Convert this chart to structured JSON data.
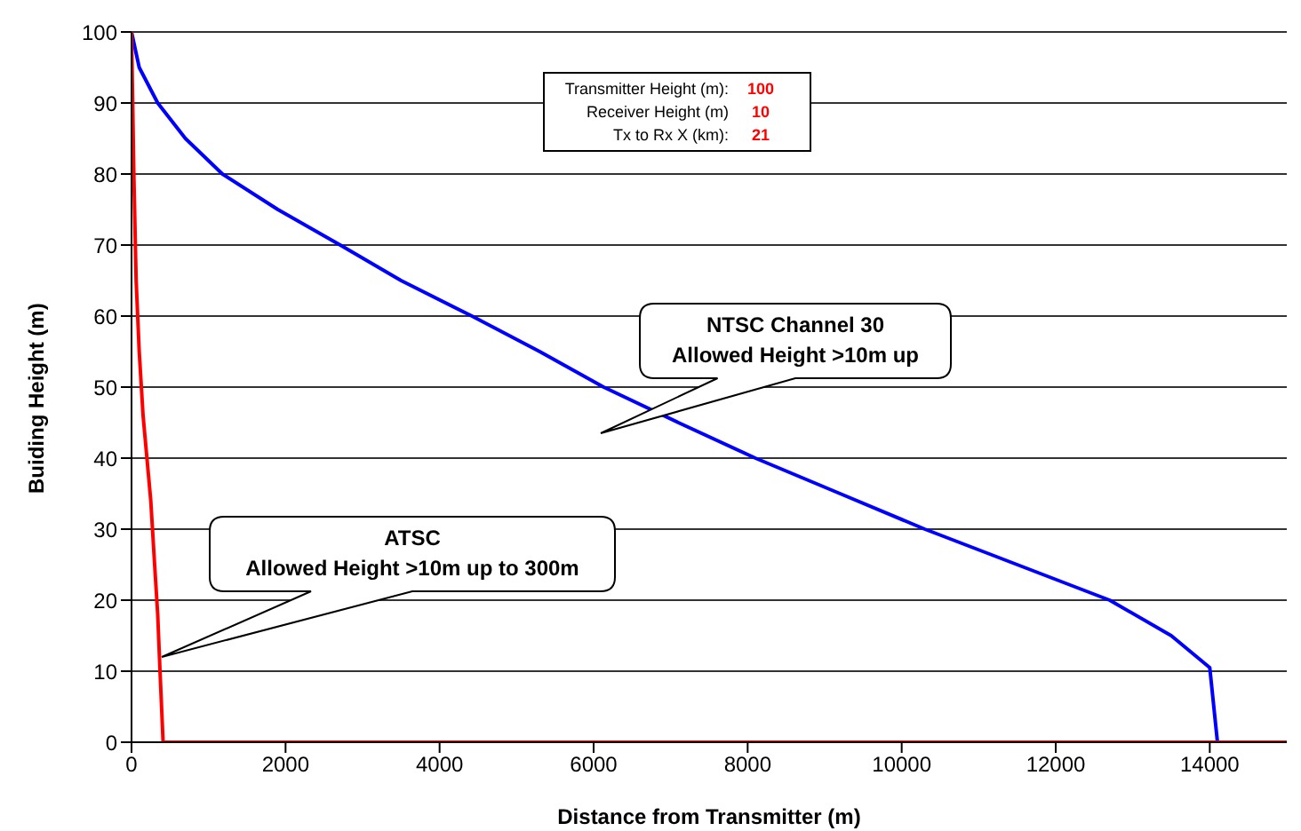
{
  "chart_data": {
    "type": "line",
    "xlabel": "Distance from Transmitter (m)",
    "ylabel": "Buiding Height (m)",
    "xlim": [
      0,
      15000
    ],
    "xticks": [
      0,
      2000,
      4000,
      6000,
      8000,
      10000,
      12000,
      14000
    ],
    "ylim": [
      0,
      100
    ],
    "yticks": [
      0,
      10,
      20,
      30,
      40,
      50,
      60,
      70,
      80,
      90,
      100
    ],
    "grid": "y",
    "marker": "none",
    "line_style": "solid",
    "series": [
      {
        "color": "#0000ff",
        "x": [
          0,
          100,
          340,
          700,
          1180,
          1900,
          2710,
          3500,
          4420,
          5300,
          6130,
          7100,
          8100,
          9200,
          10300,
          11500,
          12700,
          13500,
          14000,
          14100
        ],
        "values": [
          100,
          95,
          90,
          85,
          80,
          75,
          70,
          65,
          60,
          55,
          50,
          45,
          40,
          35,
          30,
          25,
          20,
          15,
          10.5,
          0
        ]
      },
      {
        "color": "#ff0000",
        "x": [
          0,
          30,
          60,
          100,
          150,
          200,
          250,
          300,
          340,
          370,
          410,
          15000
        ],
        "values": [
          100,
          80,
          65,
          55,
          46,
          40,
          34,
          25,
          18,
          10,
          0,
          0
        ]
      }
    ],
    "annotations": [
      "NTSC Channel 30\nAllowed Height >10m up",
      "ATSC\nAllowed Height >10m up to 300m",
      "Transmitter Height (m):",
      "100",
      "Receiver Height (m)",
      "10",
      "Tx to Rx X (km):",
      "21"
    ]
  }
}
